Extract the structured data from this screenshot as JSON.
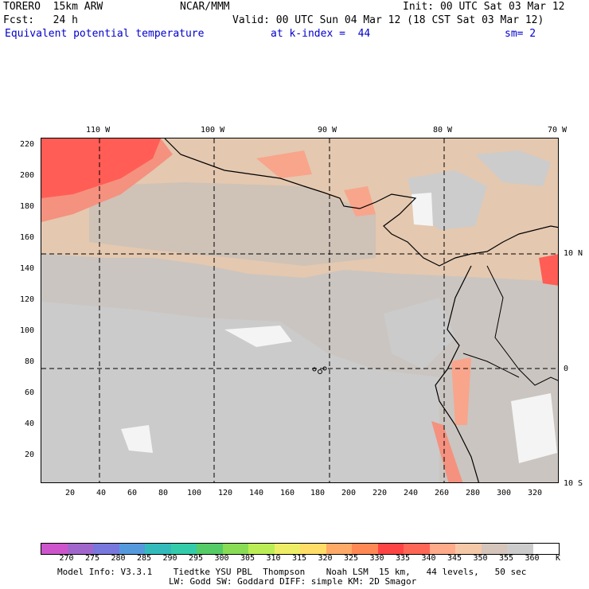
{
  "header": {
    "model": "TORERO  15km ARW",
    "org": "NCAR/MMM",
    "init": "Init: 00 UTC Sat 03 Mar 12",
    "fcst": "Fcst:   24 h",
    "valid": "Valid: 00 UTC Sun 04 Mar 12 (18 CST Sat 03 Mar 12)",
    "field": "Equivalent potential temperature",
    "level": "at k-index =  44",
    "smooth": "sm= 2"
  },
  "map": {
    "lon_labels": [
      "110 W",
      "100 W",
      "90 W",
      "80 W",
      "70 W"
    ],
    "lat_labels": [
      "10 N",
      "0",
      "10 S"
    ],
    "y_ticks": [
      "220",
      "200",
      "180",
      "160",
      "140",
      "120",
      "100",
      "80",
      "60",
      "40",
      "20"
    ],
    "x_ticks": [
      "20",
      "40",
      "60",
      "80",
      "100",
      "120",
      "140",
      "160",
      "180",
      "200",
      "220",
      "240",
      "260",
      "280",
      "300",
      "320"
    ]
  },
  "colorbar": {
    "labels": [
      "270",
      "275",
      "280",
      "285",
      "290",
      "295",
      "300",
      "305",
      "310",
      "315",
      "320",
      "325",
      "330",
      "335",
      "340",
      "345",
      "350",
      "355",
      "360"
    ],
    "unit": "K",
    "colors": [
      "#cc55cc",
      "#a066cc",
      "#7777dd",
      "#5599dd",
      "#33bbbb",
      "#33ccaa",
      "#55cc66",
      "#88dd55",
      "#bbee55",
      "#eeee66",
      "#ffdd66",
      "#ffaa66",
      "#ff8855",
      "#ff4444",
      "#ff6655",
      "#ffaa88",
      "#f5c8a8",
      "#d5c5bb",
      "#cccccc",
      "#ffffff"
    ]
  },
  "footer": {
    "line1": "Model Info: V3.3.1    Tiedtke YSU PBL  Thompson    Noah LSM  15 km,   44 levels,   50 sec",
    "line2": "LW: Godd SW: Goddard DIFF: simple KM: 2D Smagor"
  }
}
